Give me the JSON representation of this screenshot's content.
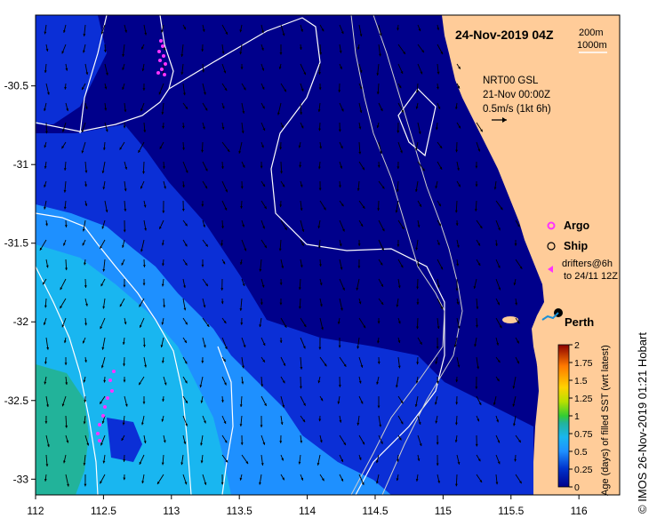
{
  "map": {
    "date_label": "24-Nov-2019 04Z",
    "isobath_labels": [
      "200m",
      "1000m"
    ],
    "current_info": [
      "NRT00 GSL",
      "21-Nov 00:00Z",
      "0.5m/s (1kt 6h)"
    ],
    "lon_range": [
      112,
      116.3
    ],
    "lat_range": [
      -33.1,
      -30.05
    ],
    "x_ticks": [
      "112",
      "112.5",
      "113",
      "113.5",
      "114",
      "114.5",
      "115",
      "115.5",
      "116"
    ],
    "y_ticks": [
      "-30.5",
      "-31",
      "-31.5",
      "-32",
      "-32.5",
      "-33"
    ]
  },
  "legend": {
    "argo_label": "Argo",
    "ship_label": "Ship",
    "drifters_label_1": "drifters@6h",
    "drifters_label_2": "to 24/11 12Z",
    "place_label": "Perth"
  },
  "colorbar": {
    "title": "Age (days) of filled SST (wrt latest)",
    "ticks": [
      "2",
      "1.75",
      "1.5",
      "1.25",
      "1",
      "0.75",
      "0.5",
      "0.25",
      "0"
    ]
  },
  "credit": "© IMOS 26-Nov-2019 01:21 Hobart",
  "colors": {
    "land": "#ffcc99",
    "sea_new": "#00008b",
    "sea_mid": "#0b2fd6",
    "sea_older": "#1e90ff",
    "sea_old": "#19b6f0",
    "sea_oldest": "#22b39a",
    "argo": "#ff33ff",
    "contour": "#ffffff"
  }
}
